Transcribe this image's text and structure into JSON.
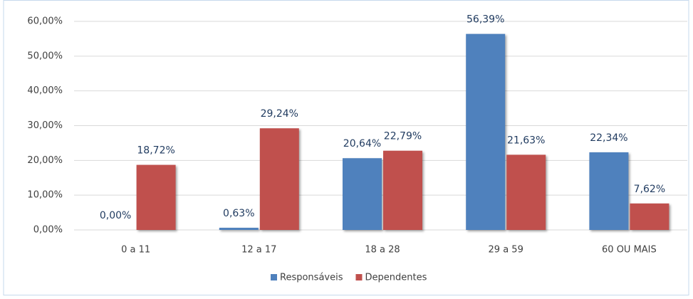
{
  "chart_data": {
    "type": "bar",
    "categories": [
      "0 a 11",
      "12 a 17",
      "18 a 28",
      "29 a 59",
      "60 OU MAIS"
    ],
    "series": [
      {
        "name": "Responsáveis",
        "color": "#4f81bd",
        "values": [
          0,
          0.63,
          20.64,
          56.39,
          22.34
        ],
        "value_labels": [
          "0,00%",
          "0,63%",
          "20,64%",
          "56,39%",
          "22,34%"
        ]
      },
      {
        "name": "Dependentes",
        "color": "#c0504d",
        "values": [
          18.72,
          29.24,
          22.79,
          21.63,
          7.62
        ],
        "value_labels": [
          "18,72%",
          "29,24%",
          "22,79%",
          "21,63%",
          "7,62%"
        ]
      }
    ],
    "ylim": [
      0,
      60
    ],
    "yticks": [
      {
        "value": 0,
        "label": "0,00%"
      },
      {
        "value": 10,
        "label": "10,00%"
      },
      {
        "value": 20,
        "label": "20,00%"
      },
      {
        "value": 30,
        "label": "30,00%"
      },
      {
        "value": 40,
        "label": "40,00%"
      },
      {
        "value": 50,
        "label": "50,00%"
      },
      {
        "value": 60,
        "label": "60,00%"
      }
    ],
    "grid": true,
    "legend": "bottom"
  }
}
